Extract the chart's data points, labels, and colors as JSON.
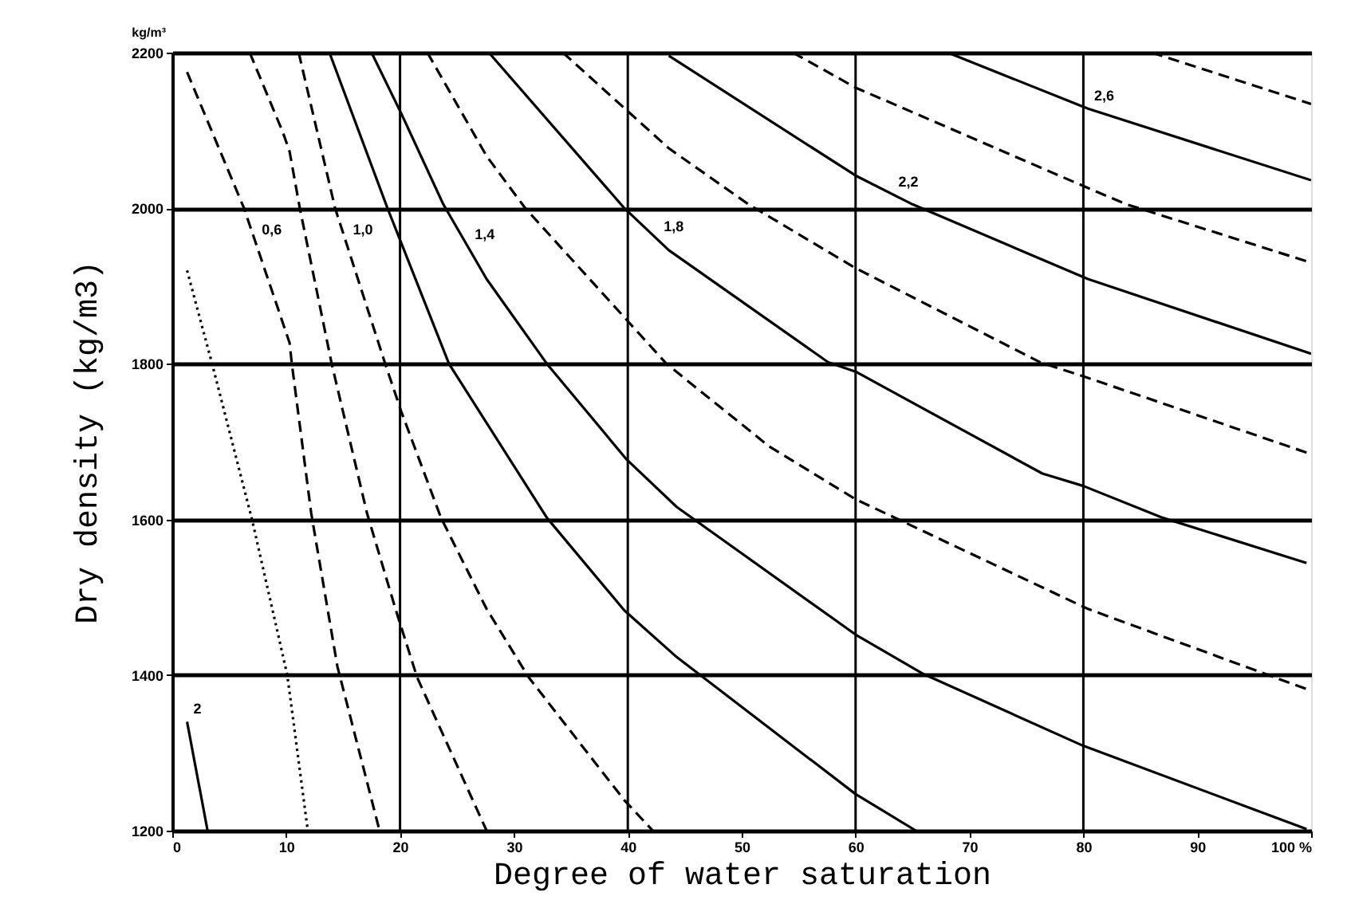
{
  "chart_data": {
    "type": "line",
    "xlabel": "Degree of water saturation",
    "ylabel": "Dry density (kg/m3)",
    "xlim": [
      0,
      100
    ],
    "ylim": [
      1200,
      2200
    ],
    "xticks": [
      0,
      10,
      20,
      30,
      40,
      50,
      60,
      70,
      80,
      90,
      {
        "value": 100,
        "label": "100 %"
      }
    ],
    "yticks": [
      1200,
      1400,
      1600,
      1800,
      2000,
      2200
    ],
    "grid": "y",
    "ref_lines": [
      {
        "axis": "x",
        "value": 20,
        "color": "#000000"
      },
      {
        "axis": "x",
        "value": 40,
        "color": "#000000"
      },
      {
        "axis": "x",
        "value": 60,
        "color": "#000000"
      },
      {
        "axis": "x",
        "value": 80,
        "color": "#000000"
      }
    ],
    "annotations": [
      "kg/m³",
      {
        "text": "0,6",
        "x": 7.3,
        "y": 1956
      },
      {
        "text": "1,0",
        "x": 15.3,
        "y": 1956
      },
      {
        "text": "1,4",
        "x": 26.0,
        "y": 1950
      },
      {
        "text": "1,8",
        "x": 42.6,
        "y": 1960
      },
      {
        "text": "2,2",
        "x": 63.2,
        "y": 2018
      },
      {
        "text": "2,6",
        "x": 80.4,
        "y": 2128
      },
      {
        "text": "2",
        "x": 1.3,
        "y": 1340
      }
    ],
    "series": [
      {
        "color": "#000000",
        "line_style": "solid",
        "x": [
          1.3,
          3.1
        ],
        "values": [
          1340,
          1200
        ]
      },
      {
        "color": "#000000",
        "line_style": "dotted",
        "x": [
          1.3,
          3.5,
          7.0,
          10.1,
          11.9
        ],
        "values": [
          1920,
          1800,
          1600,
          1400,
          1200
        ]
      },
      {
        "color": "#000000",
        "line_style": "dashed",
        "x": [
          1.3,
          6.3,
          10.3,
          10.5,
          12.2,
          14.5,
          18.2
        ],
        "values": [
          2175,
          2000,
          1827,
          1800,
          1608,
          1411,
          1200
        ]
      },
      {
        "color": "#000000",
        "line_style": "dashed",
        "x": [
          6.8,
          9.7,
          10.3,
          11.2,
          14.0,
          17.1,
          19.6,
          21.5,
          27.6
        ],
        "values": [
          2200,
          2098,
          2073,
          2000,
          1800,
          1608,
          1485,
          1397,
          1200
        ]
      },
      {
        "color": "#000000",
        "line_style": "dashed",
        "x": [
          11.1,
          14.3,
          18.7,
          20.1,
          23.6,
          27.6,
          31.3,
          39.7,
          42.2
        ],
        "values": [
          2200,
          2000,
          1800,
          1739,
          1602,
          1485,
          1397,
          1239,
          1200
        ]
      },
      {
        "color": "#000000",
        "line_style": "solid",
        "x": [
          13.8,
          18.9,
          24.3,
          32.9,
          39.7,
          44.3,
          60.0,
          65.3
        ],
        "values": [
          2200,
          2000,
          1800,
          1602,
          1483,
          1423,
          1247,
          1200
        ]
      },
      {
        "color": "#000000",
        "line_style": "solid",
        "x": [
          17.5,
          20.1,
          23.8,
          27.6,
          32.9,
          39.9,
          44.3,
          60.0,
          66.0,
          80.0,
          99.6
        ],
        "values": [
          2200,
          2122,
          2005,
          1909,
          1800,
          1677,
          1616,
          1452,
          1401,
          1309,
          1202
        ]
      },
      {
        "color": "#000000",
        "line_style": "dashed",
        "x": [
          22.4,
          27.6,
          31.0,
          43.4,
          52.4,
          60.0,
          80.4,
          99.6
        ],
        "values": [
          2200,
          2067,
          2000,
          1800,
          1694,
          1626,
          1485,
          1382
        ]
      },
      {
        "color": "#000000",
        "line_style": "solid",
        "x": [
          27.8,
          39.7,
          43.6,
          57.6,
          60.0,
          76.4,
          80.0,
          87.0,
          99.6
        ],
        "values": [
          2200,
          2000,
          1946,
          1802,
          1790,
          1659,
          1643,
          1602,
          1544
        ]
      },
      {
        "color": "#000000",
        "line_style": "dashed",
        "x": [
          34.3,
          43.6,
          50.6,
          60.0,
          76.2,
          80.4,
          100
        ],
        "values": [
          2200,
          2077,
          2005,
          1923,
          1802,
          1782,
          1684
        ]
      },
      {
        "color": "#000000",
        "line_style": "solid",
        "x": [
          43.6,
          60.0,
          65.0,
          80.4,
          100
        ],
        "values": [
          2196,
          2042,
          2005,
          1909,
          1813
        ]
      },
      {
        "color": "#000000",
        "line_style": "dashed",
        "x": [
          54.5,
          60.0,
          80.4,
          83.8,
          100
        ],
        "values": [
          2200,
          2155,
          2026,
          2005,
          1930
        ]
      },
      {
        "color": "#000000",
        "line_style": "solid",
        "x": [
          68.1,
          80.4,
          100
        ],
        "values": [
          2200,
          2128,
          2036
        ]
      },
      {
        "color": "#000000",
        "line_style": "dashed",
        "x": [
          86.0,
          100
        ],
        "values": [
          2200,
          2134
        ]
      }
    ]
  }
}
